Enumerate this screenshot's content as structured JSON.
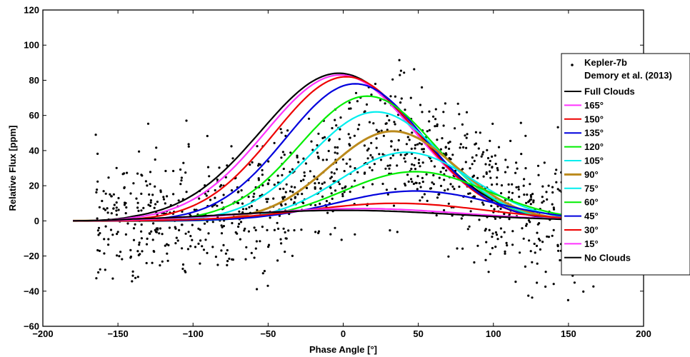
{
  "chart_data": {
    "type": "line",
    "xlabel": "Phase Angle [°]",
    "ylabel": "Relative Flux [ppm]",
    "xlim": [
      -200,
      200
    ],
    "ylim": [
      -60,
      120
    ],
    "xticks": [
      -200,
      -150,
      -100,
      -50,
      0,
      50,
      100,
      150,
      200
    ],
    "yticks": [
      -60,
      -40,
      -20,
      0,
      20,
      40,
      60,
      80,
      100,
      120
    ],
    "grid": false,
    "legend_position": "right",
    "scatter": {
      "name": "Kepler-7b\nDemory et al. (2013)",
      "legend_lines": [
        "Kepler-7b",
        "Demory et al. (2013)"
      ],
      "color": "#000000",
      "x_range": [
        -165,
        168
      ],
      "envelope": "scatter of observed flux points around 0–60 ppm, noisy, approx ±25 ppm"
    },
    "series": [
      {
        "name": "Full Clouds",
        "color": "#000000",
        "peak": 84,
        "center": -3,
        "width": 52,
        "offset": 0,
        "offset_right": 1
      },
      {
        "name": "165°",
        "color": "#ff33ff",
        "peak": 83,
        "center": -2,
        "width": 50,
        "offset": 0,
        "offset_right": 1
      },
      {
        "name": "150°",
        "color": "#ee0000",
        "peak": 82,
        "center": 2,
        "width": 48,
        "offset": 0,
        "offset_right": 1
      },
      {
        "name": "135°",
        "color": "#0000dd",
        "peak": 78,
        "center": 8,
        "width": 46,
        "offset": 0,
        "offset_right": 1
      },
      {
        "name": "120°",
        "color": "#00ee00",
        "peak": 71,
        "center": 16,
        "width": 45,
        "offset": 0,
        "offset_right": 1
      },
      {
        "name": "105°",
        "color": "#00eeee",
        "peak": 62,
        "center": 22,
        "width": 44,
        "offset": 0,
        "offset_right": 1
      },
      {
        "name": "90°",
        "color": "#bb8a1c",
        "peak": 51,
        "center": 33,
        "width": 42,
        "offset": 0,
        "offset_right": 1
      },
      {
        "name": "75°",
        "color": "#00eeee",
        "peak": 39,
        "center": 42,
        "width": 44,
        "offset": 0,
        "offset_right": 1
      },
      {
        "name": "60°",
        "color": "#00ee00",
        "peak": 28,
        "center": 48,
        "width": 48,
        "offset": 0,
        "offset_right": 1
      },
      {
        "name": "45°",
        "color": "#0000dd",
        "peak": 17,
        "center": 48,
        "width": 52,
        "offset": 0,
        "offset_right": 1
      },
      {
        "name": "30°",
        "color": "#ee0000",
        "peak": 10,
        "center": 35,
        "width": 60,
        "offset": 0,
        "offset_right": 1
      },
      {
        "name": "15°",
        "color": "#ff33ff",
        "peak": 7,
        "center": 10,
        "width": 70,
        "offset": 0,
        "offset_right": 1
      },
      {
        "name": "No Clouds",
        "color": "#000000",
        "peak": 6,
        "center": 0,
        "width": 75,
        "offset": 0,
        "offset_right": 1
      }
    ]
  }
}
